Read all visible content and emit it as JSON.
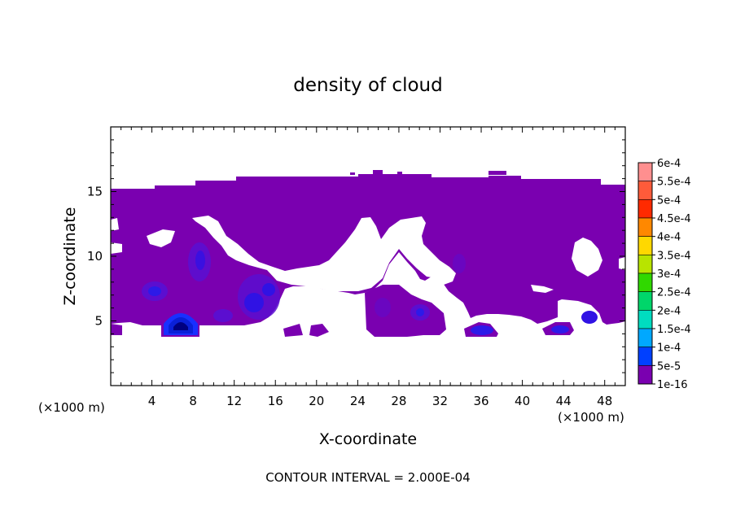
{
  "chart_data": {
    "type": "heatmap",
    "title": "density of cloud",
    "xlabel": "X-coordinate",
    "ylabel": "Z-coordinate",
    "x_unit_left": "(×1000 m)",
    "x_unit_right": "(×1000 m)",
    "footer": "CONTOUR INTERVAL = 2.000E-04",
    "xlim": [
      0,
      50
    ],
    "ylim": [
      0,
      20
    ],
    "x_ticks": [
      4,
      8,
      12,
      16,
      20,
      24,
      28,
      32,
      36,
      40,
      44,
      48
    ],
    "y_ticks": [
      5,
      10,
      15
    ],
    "grid": false,
    "legend_position": "right",
    "colorbar": {
      "labels": [
        "6e-4",
        "5.5e-4",
        "5e-4",
        "4.5e-4",
        "4e-4",
        "3.5e-4",
        "3e-4",
        "2.5e-4",
        "2e-4",
        "1.5e-4",
        "1e-4",
        "5e-5",
        "1e-16"
      ],
      "colors": [
        "#ff8f8f",
        "#ff5b3a",
        "#ff2a00",
        "#ff8800",
        "#ffd800",
        "#b8e400",
        "#30d800",
        "#00d66a",
        "#00dcc0",
        "#00a8ff",
        "#0040ff",
        "#000080",
        "#7a00b0"
      ]
    },
    "cloud_regions": [
      {
        "x": [
          0,
          50
        ],
        "z": [
          11,
          15.5
        ],
        "value": "1e-16"
      },
      {
        "x": [
          0,
          17
        ],
        "z": [
          5,
          11
        ],
        "value": "1e-16"
      },
      {
        "x": [
          5.2,
          8.5
        ],
        "z": [
          4,
          5.5
        ],
        "value": "5e-5"
      },
      {
        "x": [
          13,
          15
        ],
        "z": [
          5.8,
          7.2
        ],
        "value": "5e-5"
      },
      {
        "x": [
          35,
          37
        ],
        "z": [
          4.2,
          4.8
        ],
        "value": "5e-5"
      },
      {
        "x": [
          43,
          44.5
        ],
        "z": [
          4.2,
          4.8
        ],
        "value": "5e-5"
      },
      {
        "x": [
          46,
          47.5
        ],
        "z": [
          5,
          6
        ],
        "value": "5e-5"
      }
    ]
  }
}
